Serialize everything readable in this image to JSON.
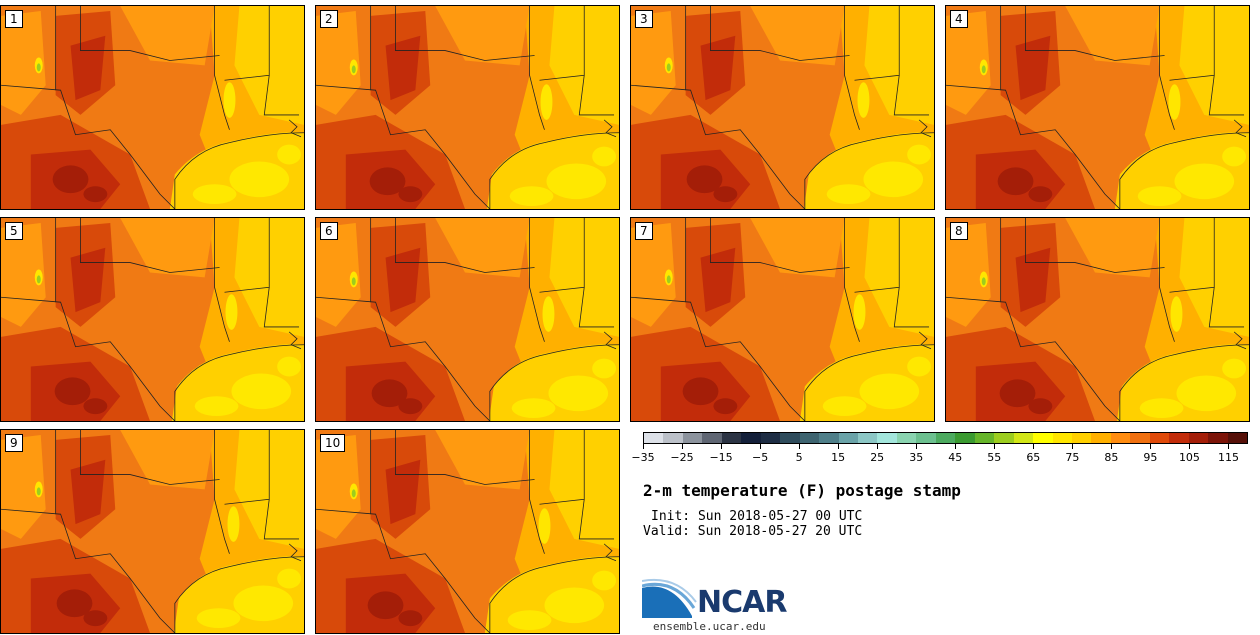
{
  "figure": {
    "title": "2-m temperature (F) postage stamp",
    "init": "Init: Sun 2018-05-27 00 UTC",
    "valid": "Valid: Sun 2018-05-27 20 UTC"
  },
  "members": [
    "1",
    "2",
    "3",
    "4",
    "5",
    "6",
    "7",
    "8",
    "9",
    "10"
  ],
  "colorbar": {
    "colors": [
      "#dde1e8",
      "#bcc1c9",
      "#8c939d",
      "#5f6673",
      "#2c3444",
      "#14203a",
      "#1e2d44",
      "#2f4c5c",
      "#3e6470",
      "#4f7f89",
      "#6aa3a8",
      "#8cc7c5",
      "#a3e6dc",
      "#8ad4b0",
      "#6cc08f",
      "#4caa5f",
      "#3a9a30",
      "#66b52a",
      "#9ccd1f",
      "#d2e617",
      "#ffff00",
      "#ffe600",
      "#ffd000",
      "#ffb000",
      "#ff8c10",
      "#f07010",
      "#e04a0a",
      "#c22c0a",
      "#a41e08",
      "#7c1408",
      "#561008"
    ],
    "tick_labels": [
      "−35",
      "−25",
      "−15",
      "−5",
      "5",
      "15",
      "25",
      "35",
      "45",
      "55",
      "65",
      "75",
      "85",
      "95",
      "105",
      "115"
    ]
  },
  "logo": {
    "text": "NCAR",
    "url": "ensemble.ucar.edu"
  }
}
